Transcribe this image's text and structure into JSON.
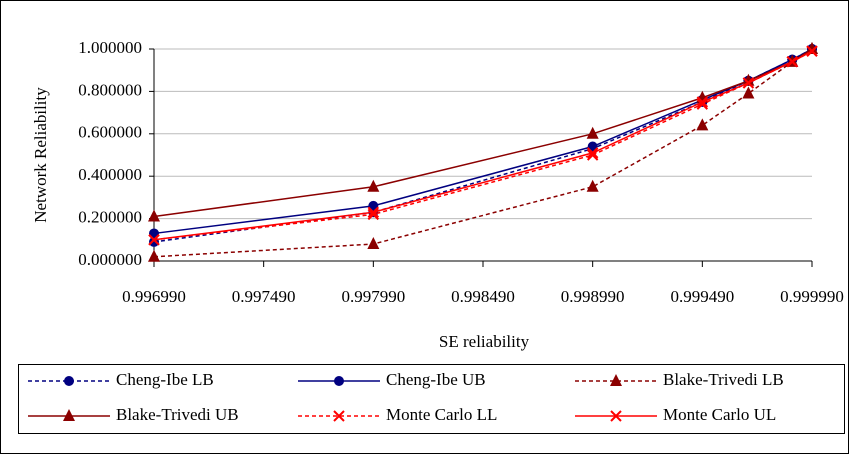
{
  "chart_data": {
    "type": "line",
    "x_label": "SE reliability",
    "y_label": "Network Reliability",
    "x": [
      0.99699,
      0.99799,
      0.99899,
      0.99949,
      0.9997,
      0.9999,
      0.99999
    ],
    "xlim": [
      0.99699,
      0.99999
    ],
    "xticks": [
      {
        "value": 0.99699,
        "label": "0.996990"
      },
      {
        "value": 0.99749,
        "label": "0.997490"
      },
      {
        "value": 0.99799,
        "label": "0.997990"
      },
      {
        "value": 0.99849,
        "label": "0.998490"
      },
      {
        "value": 0.99899,
        "label": "0.998990"
      },
      {
        "value": 0.99949,
        "label": "0.999490"
      },
      {
        "value": 0.99999,
        "label": "0.999990"
      }
    ],
    "ylim": [
      0,
      1
    ],
    "yticks": [
      {
        "value": 0,
        "label": "0.000000"
      },
      {
        "value": 0.2,
        "label": "0.200000"
      },
      {
        "value": 0.4,
        "label": "0.400000"
      },
      {
        "value": 0.6,
        "label": "0.600000"
      },
      {
        "value": 0.8,
        "label": "0.800000"
      },
      {
        "value": 1,
        "label": "1.000000"
      }
    ],
    "grid": true,
    "series": [
      {
        "name": "Cheng-Ibe LB",
        "color": "#000080",
        "dash": true,
        "marker": "circle",
        "values": [
          0.09,
          0.23,
          0.53,
          0.75,
          0.85,
          0.95,
          1.0
        ]
      },
      {
        "name": "Cheng-Ibe UB",
        "color": "#000080",
        "dash": false,
        "marker": "circle",
        "values": [
          0.13,
          0.26,
          0.54,
          0.76,
          0.85,
          0.95,
          1.0
        ]
      },
      {
        "name": "Blake-Trivedi LB",
        "color": "#8b0000",
        "dash": true,
        "marker": "triangle",
        "values": [
          0.02,
          0.08,
          0.35,
          0.64,
          0.79,
          0.94,
          1.0
        ]
      },
      {
        "name": "Blake-Trivedi UB",
        "color": "#8b0000",
        "dash": false,
        "marker": "triangle",
        "values": [
          0.21,
          0.35,
          0.6,
          0.77,
          0.85,
          0.94,
          1.0
        ]
      },
      {
        "name": "Monte Carlo LL",
        "color": "#ff0000",
        "dash": true,
        "marker": "x",
        "values": [
          0.1,
          0.22,
          0.5,
          0.74,
          0.84,
          0.94,
          0.99
        ]
      },
      {
        "name": "Monte Carlo UL",
        "color": "#ff0000",
        "dash": false,
        "marker": "x",
        "values": [
          0.1,
          0.23,
          0.51,
          0.75,
          0.84,
          0.94,
          0.99
        ]
      }
    ]
  }
}
